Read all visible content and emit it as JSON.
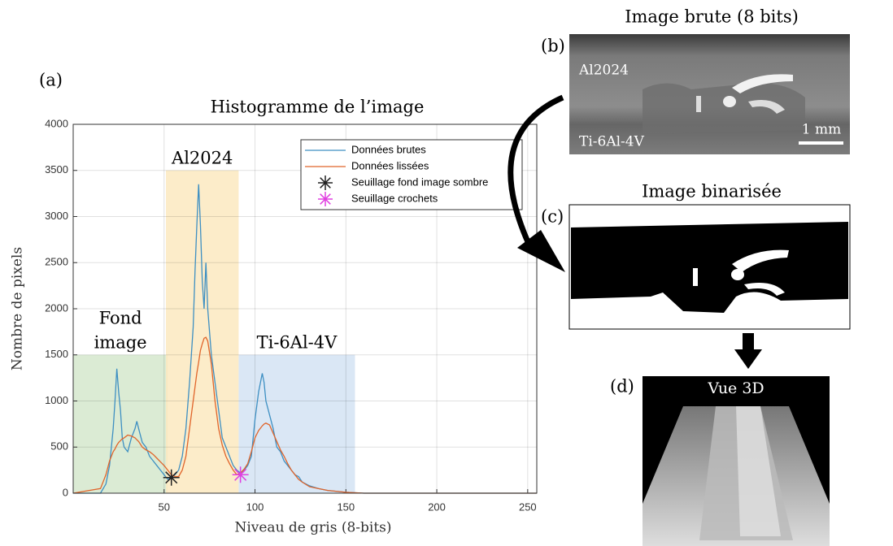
{
  "chart_data": {
    "type": "line",
    "title": "Histogramme de l’image",
    "panel_label": "(a)",
    "x_label": "Niveau de gris (8-bits)",
    "y_label": "Nombre de pixels",
    "xlim": [
      0,
      255
    ],
    "ylim": [
      0,
      4000
    ],
    "xticks": [
      50,
      100,
      150,
      200,
      250
    ],
    "yticks": [
      0,
      500,
      1000,
      1500,
      2000,
      2500,
      3000,
      3500,
      4000
    ],
    "grid": true,
    "legend": "upper right",
    "x": [
      0,
      15,
      18,
      20,
      22,
      23,
      24,
      25,
      26,
      27,
      28,
      30,
      32,
      34,
      35,
      36,
      38,
      40,
      42,
      44,
      46,
      48,
      50,
      52,
      54,
      56,
      58,
      60,
      62,
      64,
      66,
      67,
      68,
      69,
      70,
      71,
      72,
      73,
      74,
      76,
      78,
      80,
      82,
      84,
      86,
      88,
      90,
      92,
      94,
      96,
      98,
      100,
      102,
      104,
      105,
      106,
      108,
      110,
      112,
      114,
      116,
      118,
      120,
      122,
      124,
      126,
      130,
      135,
      140,
      145,
      150,
      160,
      255
    ],
    "series": [
      {
        "name": "Données brutes",
        "color": "#3d8fc2",
        "values": [
          0,
          0,
          100,
          300,
          700,
          1000,
          1350,
          1100,
          900,
          600,
          500,
          450,
          600,
          700,
          780,
          700,
          550,
          500,
          400,
          350,
          300,
          250,
          200,
          150,
          170,
          200,
          250,
          400,
          700,
          1200,
          1800,
          2400,
          2900,
          3350,
          2900,
          2300,
          2000,
          2500,
          2000,
          1500,
          1200,
          900,
          600,
          500,
          400,
          300,
          250,
          220,
          250,
          300,
          400,
          800,
          1100,
          1300,
          1200,
          1000,
          850,
          700,
          500,
          450,
          350,
          300,
          250,
          200,
          180,
          120,
          80,
          50,
          30,
          20,
          10,
          0,
          0
        ]
      },
      {
        "name": "Données lissées",
        "color": "#e0642a",
        "values": [
          0,
          50,
          200,
          350,
          450,
          480,
          520,
          550,
          570,
          590,
          600,
          630,
          620,
          600,
          580,
          560,
          500,
          470,
          450,
          420,
          380,
          340,
          300,
          250,
          200,
          180,
          180,
          250,
          400,
          700,
          1000,
          1150,
          1300,
          1420,
          1550,
          1620,
          1680,
          1690,
          1650,
          1400,
          1000,
          700,
          520,
          400,
          320,
          250,
          200,
          220,
          260,
          320,
          450,
          600,
          680,
          730,
          750,
          760,
          740,
          650,
          560,
          470,
          400,
          320,
          250,
          200,
          150,
          120,
          70,
          50,
          30,
          20,
          10,
          0,
          0
        ]
      }
    ],
    "markers": [
      {
        "name": "Seuillage fond image sombre",
        "color": "#222222",
        "x": 54,
        "y": 170
      },
      {
        "name": "Seuillage crochets",
        "color": "#e040e0",
        "x": 92,
        "y": 200
      }
    ],
    "regions": [
      {
        "lines": [
          "Fond",
          "image"
        ],
        "x": [
          0,
          52
        ],
        "top": 1500,
        "color": "#d5e8cc"
      },
      {
        "lines": [
          "Al2024"
        ],
        "x": [
          51,
          91
        ],
        "top": 3500,
        "color": "#fce9c0"
      },
      {
        "lines": [
          "Ti-6Al-4V"
        ],
        "x": [
          91,
          155
        ],
        "top": 1500,
        "color": "#d3e3f3"
      }
    ]
  },
  "panels": {
    "b": {
      "title": "Image brute (8 bits)",
      "label": "(b)",
      "top_text": "Al2024",
      "bottom_text": "Ti-6Al-4V",
      "scale": "1 mm"
    },
    "c": {
      "title": "Image binarisée",
      "label": "(c)"
    },
    "d": {
      "title": "Vue 3D",
      "label": "(d)"
    }
  }
}
